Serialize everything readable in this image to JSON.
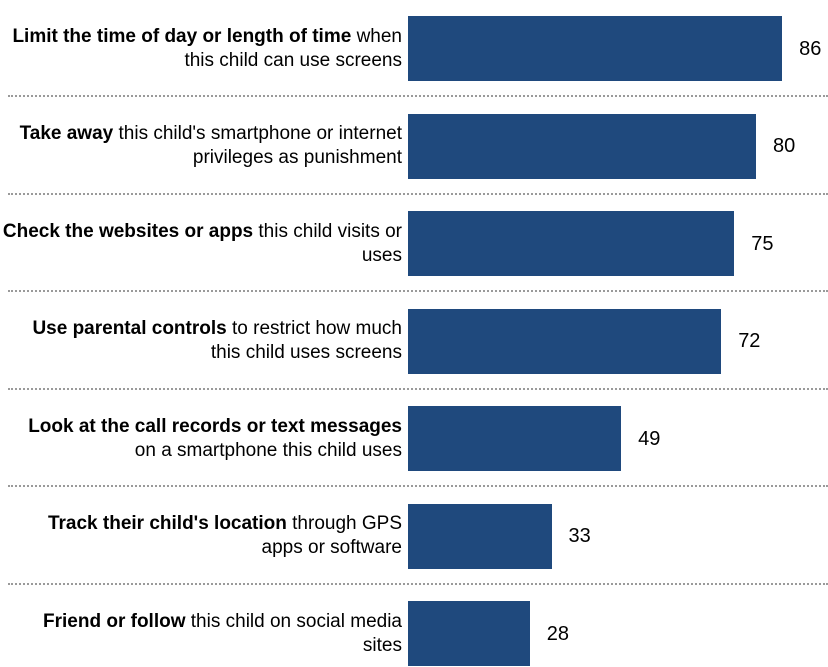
{
  "chart_data": {
    "type": "bar",
    "orientation": "horizontal",
    "bar_color": "#1f497d",
    "xlim": [
      0,
      100
    ],
    "categories": [
      {
        "bold": "Limit the time of day or length of time",
        "rest": " when this child can use screens",
        "value": 86
      },
      {
        "bold": "Take away",
        "rest": " this child's smartphone or internet privileges as punishment",
        "value": 80
      },
      {
        "bold": "Check the websites or apps",
        "rest": " this child visits or uses",
        "value": 75
      },
      {
        "bold": "Use parental controls",
        "rest": " to restrict how much this child uses screens",
        "value": 72
      },
      {
        "bold": "Look at the call records or text messages",
        "rest": " on a smartphone this child uses",
        "value": 49
      },
      {
        "bold": "Track their child's location",
        "rest": " through GPS apps or software",
        "value": 33
      },
      {
        "bold": "Friend or follow",
        "rest": " this child on social media sites",
        "value": 28
      }
    ]
  }
}
